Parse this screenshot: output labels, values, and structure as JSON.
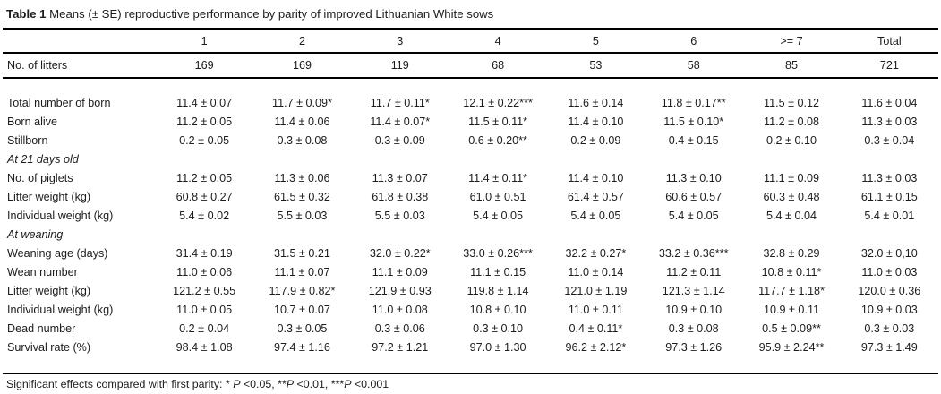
{
  "page": {
    "background": "#ffffff",
    "text_color": "#1c1c1c",
    "rule_color": "#000000"
  },
  "title": {
    "label": "Table 1",
    "text": "Means (± SE) reproductive performance by parity of improved Lithuanian White sows"
  },
  "table": {
    "columns": [
      "1",
      "2",
      "3",
      "4",
      "5",
      "6",
      ">= 7",
      "Total"
    ],
    "litters_row": {
      "label": "No. of litters",
      "values": [
        "169",
        "169",
        "119",
        "68",
        "53",
        "58",
        "85",
        "721"
      ]
    },
    "rows": [
      {
        "type": "data",
        "label": "Total number of born",
        "values": [
          "11.4 ± 0.07",
          "11.7 ± 0.09*",
          "11.7 ± 0.11*",
          "12.1 ± 0.22***",
          "11.6 ± 0.14",
          "11.8 ± 0.17**",
          "11.5 ± 0.12",
          "11.6 ± 0.04"
        ]
      },
      {
        "type": "data",
        "label": "Born alive",
        "values": [
          "11.2 ± 0.05",
          "11.4 ± 0.06",
          "11.4 ± 0.07*",
          "11.5 ± 0.11*",
          "11.4 ± 0.10",
          "11.5 ± 0.10*",
          "11.2 ± 0.08",
          "11.3 ± 0.03"
        ]
      },
      {
        "type": "data",
        "label": "Stillborn",
        "values": [
          "0.2 ± 0.05",
          "0.3 ± 0.08",
          "0.3 ± 0.09",
          "0.6 ± 0.20**",
          "0.2 ± 0.09",
          "0.4 ± 0.15",
          "0.2 ± 0.10",
          "0.3 ± 0.04"
        ]
      },
      {
        "type": "section",
        "label": "At 21 days old",
        "values": []
      },
      {
        "type": "data",
        "label": "No. of piglets",
        "values": [
          "11.2 ± 0.05",
          "11.3 ± 0.06",
          "11.3 ± 0.07",
          "11.4 ± 0.11*",
          "11.4 ± 0.10",
          "11.3 ± 0.10",
          "11.1 ± 0.09",
          "11.3 ± 0.03"
        ]
      },
      {
        "type": "data",
        "label": "Litter weight (kg)",
        "values": [
          "60.8 ± 0.27",
          "61.5 ± 0.32",
          "61.8 ± 0.38",
          "61.0 ± 0.51",
          "61.4 ± 0.57",
          "60.6 ± 0.57",
          "60.3 ± 0.48",
          "61.1 ± 0.15"
        ]
      },
      {
        "type": "data",
        "label": "Individual weight (kg)",
        "values": [
          "5.4 ± 0.02",
          "5.5 ± 0.03",
          "5.5 ± 0.03",
          "5.4 ± 0.05",
          "5.4 ± 0.05",
          "5.4 ± 0.05",
          "5.4 ± 0.04",
          "5.4 ± 0.01"
        ]
      },
      {
        "type": "section",
        "label": "At weaning",
        "values": []
      },
      {
        "type": "data",
        "label": "Weaning age (days)",
        "values": [
          "31.4 ± 0.19",
          "31.5 ± 0.21",
          "32.0 ± 0.22*",
          "33.0 ± 0.26***",
          "32.2 ± 0.27*",
          "33.2 ± 0.36***",
          "32.8 ± 0.29",
          "32.0 ± 0,10"
        ]
      },
      {
        "type": "data",
        "label": "Wean number",
        "values": [
          "11.0 ± 0.06",
          "11.1 ± 0.07",
          "11.1 ± 0.09",
          "11.1 ± 0.15",
          "11.0 ± 0.14",
          "11.2 ± 0.11",
          "10.8 ± 0.11*",
          "11.0 ± 0.03"
        ]
      },
      {
        "type": "data",
        "label": "Litter weight (kg)",
        "values": [
          "121.2 ± 0.55",
          "117.9 ± 0.82*",
          "121.9 ± 0.93",
          "119.8 ± 1.14",
          "121.0 ± 1.19",
          "121.3 ± 1.14",
          "117.7 ± 1.18*",
          "120.0 ± 0.36"
        ]
      },
      {
        "type": "data",
        "label": "Individual weight (kg)",
        "values": [
          "11.0 ± 0.05",
          "10.7 ± 0.07",
          "11.0 ± 0.08",
          "10.8 ± 0.10",
          "11.0 ± 0.11",
          "10.9 ± 0.10",
          "10.9 ± 0.11",
          "10.9 ± 0.03"
        ]
      },
      {
        "type": "data",
        "label": "Dead number",
        "values": [
          "0.2 ± 0.04",
          "0.3 ± 0.05",
          "0.3 ± 0.06",
          "0.3 ± 0.10",
          "0.4 ± 0.11*",
          "0.3 ± 0.08",
          "0.5 ± 0.09**",
          "0.3 ± 0.03"
        ]
      },
      {
        "type": "data",
        "label": "Survival rate (%)",
        "values": [
          "98.4 ± 1.08",
          "97.4 ± 1.16",
          "97.2 ± 1.21",
          "97.0 ± 1.30",
          "96.2 ± 2.12*",
          "97.3 ± 1.26",
          "95.9 ± 2.24**",
          "97.3 ± 1.49"
        ]
      }
    ]
  },
  "footnote": {
    "segments": [
      {
        "text": "Significant effects compared with first parity: * ",
        "italic": false
      },
      {
        "text": "P",
        "italic": true
      },
      {
        "text": " <0.05, **",
        "italic": false
      },
      {
        "text": "P",
        "italic": true
      },
      {
        "text": " <0.01, ***",
        "italic": false
      },
      {
        "text": "P",
        "italic": true
      },
      {
        "text": " <0.001",
        "italic": false
      }
    ]
  }
}
